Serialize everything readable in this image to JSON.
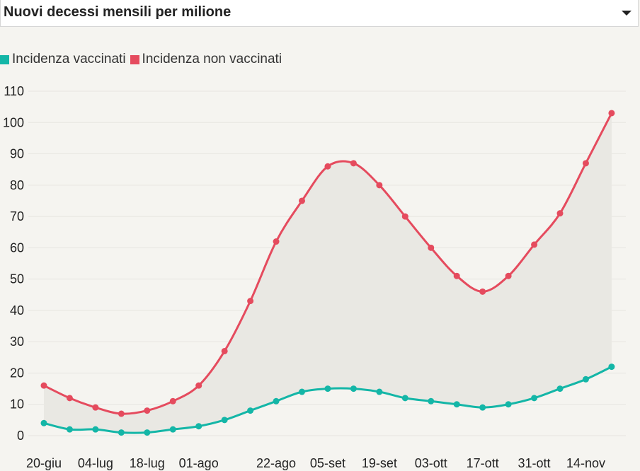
{
  "header": {
    "title": "Nuovi decessi mensili per milione",
    "dropdown_icon": "caret-down-icon"
  },
  "colors": {
    "vaccinati": "#14b6a7",
    "non_vaccinati": "#e54b5e",
    "band": "#e9e8e3",
    "grid": "#e6e5e0",
    "background": "#f5f4f0"
  },
  "chart_data": {
    "type": "line",
    "title": "Nuovi decessi mensili per milione",
    "xlabel": "",
    "ylabel": "",
    "ylim": [
      0,
      110
    ],
    "yticks": [
      0,
      10,
      20,
      30,
      40,
      50,
      60,
      70,
      80,
      90,
      100,
      110
    ],
    "grid": true,
    "legend_position": "top-left",
    "x": [
      "20-giu",
      "27-giu",
      "04-lug",
      "11-lug",
      "18-lug",
      "25-lug",
      "01-ago",
      "08-ago",
      "15-ago",
      "22-ago",
      "29-ago",
      "05-set",
      "12-set",
      "19-set",
      "26-set",
      "03-ott",
      "10-ott",
      "17-ott",
      "24-ott",
      "31-ott",
      "07-nov",
      "14-nov",
      "21-nov"
    ],
    "x_tick_labels": [
      {
        "index": 0,
        "label": "20-giu"
      },
      {
        "index": 2,
        "label": "04-lug"
      },
      {
        "index": 4,
        "label": "18-lug"
      },
      {
        "index": 6,
        "label": "01-ago"
      },
      {
        "index": 9,
        "label": "22-ago"
      },
      {
        "index": 11,
        "label": "05-set"
      },
      {
        "index": 13,
        "label": "19-set"
      },
      {
        "index": 15,
        "label": "03-ott"
      },
      {
        "index": 17,
        "label": "17-ott"
      },
      {
        "index": 19,
        "label": "31-ott"
      },
      {
        "index": 21,
        "label": "14-nov"
      }
    ],
    "series": [
      {
        "name": "Incidenza vaccinati",
        "color": "#14b6a7",
        "values": [
          4,
          2,
          2,
          1,
          1,
          2,
          3,
          5,
          8,
          11,
          14,
          15,
          15,
          14,
          12,
          11,
          10,
          9,
          10,
          12,
          15,
          18,
          22
        ]
      },
      {
        "name": "Incidenza non vaccinati",
        "color": "#e54b5e",
        "values": [
          16,
          12,
          9,
          7,
          8,
          11,
          16,
          27,
          43,
          62,
          75,
          86,
          87,
          80,
          70,
          60,
          51,
          46,
          51,
          61,
          71,
          87,
          103
        ]
      }
    ]
  }
}
